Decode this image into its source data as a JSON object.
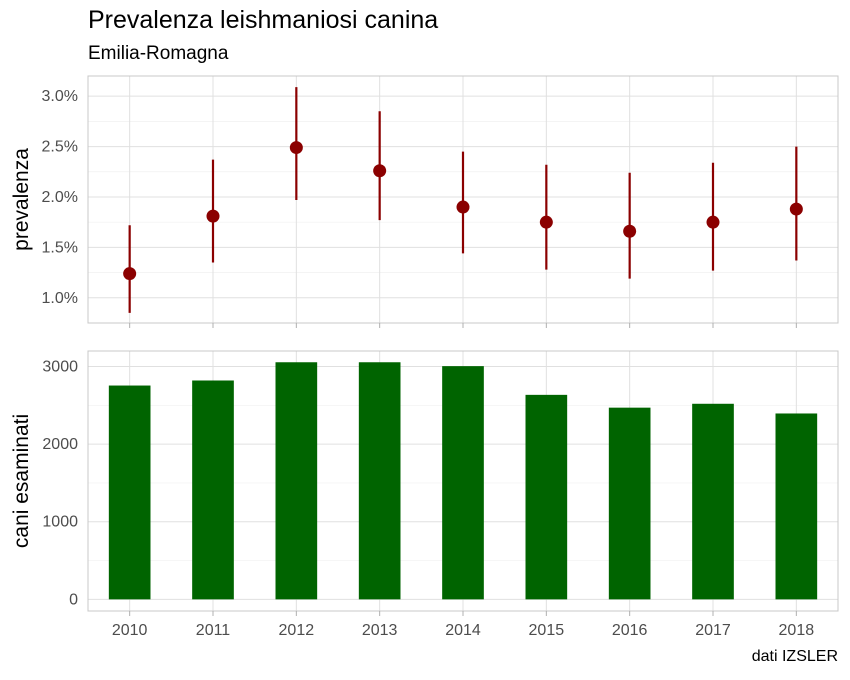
{
  "title": "Prevalenza leishmaniosi canina",
  "subtitle": "Emilia-Romagna",
  "caption": "dati IZSLER",
  "colors": {
    "prevalence": "#8b0000",
    "bars": "#006400",
    "grid_major": "#e0e0e0",
    "grid_minor": "#f0f0f0",
    "panel_border": "#c8c8c8"
  },
  "chart_data": [
    {
      "type": "scatter",
      "panel": "top",
      "ylabel": "prevalenza",
      "x": [
        "2010",
        "2011",
        "2012",
        "2013",
        "2014",
        "2015",
        "2016",
        "2017",
        "2018"
      ],
      "y": [
        1.24,
        1.81,
        2.49,
        2.26,
        1.9,
        1.75,
        1.66,
        1.75,
        1.88
      ],
      "lower": [
        0.85,
        1.35,
        1.97,
        1.77,
        1.44,
        1.28,
        1.19,
        1.27,
        1.37
      ],
      "upper": [
        1.72,
        2.37,
        3.09,
        2.85,
        2.45,
        2.32,
        2.24,
        2.34,
        2.5
      ],
      "yticks": [
        1.0,
        1.5,
        2.0,
        2.5,
        3.0
      ],
      "ytick_labels": [
        "1.0%",
        "1.5%",
        "2.0%",
        "2.5%",
        "3.0%"
      ],
      "ylim": [
        0.75,
        3.2
      ],
      "grid": true
    },
    {
      "type": "bar",
      "panel": "bottom",
      "ylabel": "cani esaminati",
      "categories": [
        "2010",
        "2011",
        "2012",
        "2013",
        "2014",
        "2015",
        "2016",
        "2017",
        "2018"
      ],
      "values": [
        2755,
        2820,
        3055,
        3055,
        3005,
        2635,
        2470,
        2520,
        2395
      ],
      "yticks": [
        0,
        1000,
        2000,
        3000
      ],
      "ytick_labels": [
        "0",
        "1000",
        "2000",
        "3000"
      ],
      "ylim": [
        -150,
        3200
      ],
      "grid": true
    }
  ]
}
